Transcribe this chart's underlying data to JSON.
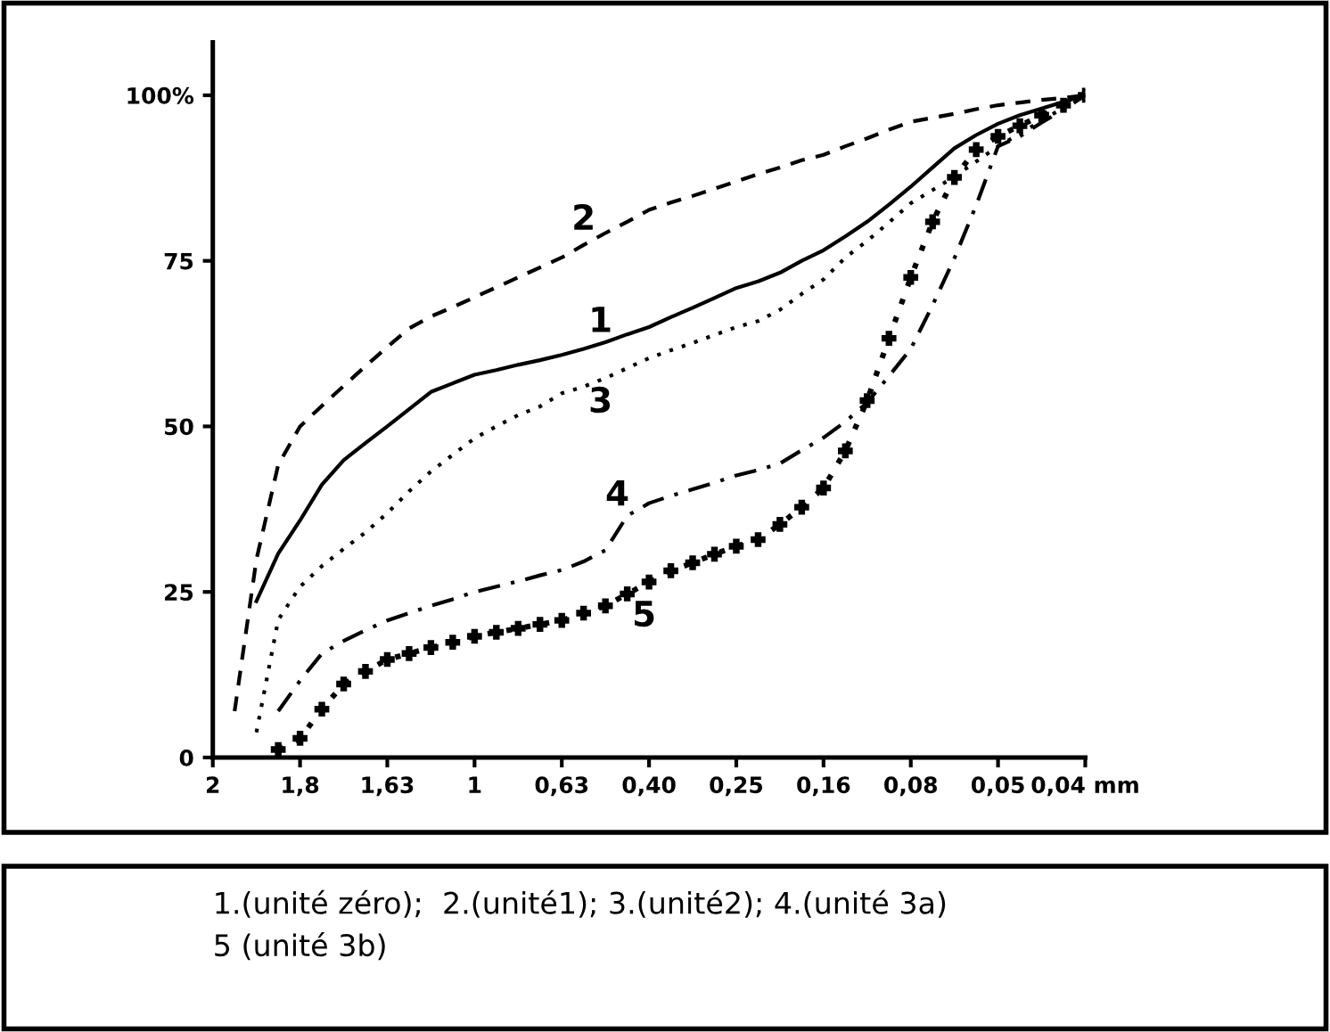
{
  "chart_data": {
    "type": "line",
    "categories": [
      "2",
      null,
      null,
      null,
      "1,8",
      null,
      null,
      null,
      "1,63",
      null,
      null,
      null,
      "1",
      null,
      null,
      null,
      "0,63",
      null,
      null,
      null,
      "0,40",
      null,
      null,
      null,
      "0,25",
      null,
      null,
      null,
      "0,16",
      null,
      null,
      null,
      "0,08",
      null,
      null,
      null,
      "0,05",
      null,
      null,
      null,
      "0,04 mm"
    ],
    "ylim": [
      0,
      108
    ],
    "yticks": [
      0,
      25,
      50,
      75,
      {
        "value": 100,
        "label": "100%"
      }
    ],
    "series": [
      {
        "name": "1",
        "color": "#000000",
        "line_style": "solid",
        "values": [
          null,
          null,
          23.6,
          30.8,
          35.8,
          41.2,
          44.9,
          47.5,
          50,
          52.6,
          55.2,
          56.5,
          57.8,
          58.5,
          59.3,
          60,
          60.8,
          61.7,
          62.7,
          63.9,
          65,
          66.5,
          67.9,
          69.4,
          70.9,
          71.9,
          73.2,
          75,
          76.6,
          78.7,
          80.9,
          83.5,
          86.2,
          89.1,
          92,
          94,
          95.7,
          97,
          98,
          99,
          100
        ]
      },
      {
        "name": "2",
        "color": "#000000",
        "line_style": "dashed",
        "values": [
          null,
          7,
          29.9,
          44.2,
          50,
          53.1,
          56.1,
          59.1,
          62,
          64.8,
          66.6,
          68,
          69.5,
          71,
          72.5,
          74,
          75.5,
          77.4,
          79.2,
          80.9,
          82.7,
          83.8,
          84.8,
          85.9,
          87,
          88.1,
          89.1,
          90.2,
          91,
          92.3,
          93.5,
          94.8,
          96,
          96.6,
          97.2,
          97.9,
          98.5,
          98.9,
          99.3,
          99.6,
          100
        ]
      },
      {
        "name": "3",
        "color": "#000000",
        "line_style": "dotted",
        "values": [
          null,
          null,
          3.8,
          20.8,
          25.8,
          28.9,
          31.5,
          34,
          36.9,
          40.2,
          43.2,
          45.7,
          48.2,
          50,
          51.7,
          53,
          55,
          56,
          57.3,
          58.8,
          60.3,
          61.5,
          62.6,
          63.8,
          65,
          65.9,
          67.6,
          70,
          72.2,
          75.5,
          78,
          80.8,
          83.7,
          85.7,
          87.7,
          90,
          92.3,
          94.2,
          96.2,
          98.1,
          100
        ]
      },
      {
        "name": "4",
        "color": "#000000",
        "line_style": "dashdot",
        "values": [
          null,
          null,
          null,
          7,
          11.6,
          15.7,
          17.6,
          19.2,
          20.7,
          21.8,
          22.9,
          23.9,
          25,
          25.8,
          26.6,
          27.5,
          28.3,
          29.6,
          31.3,
          36.5,
          38.4,
          39.5,
          40.5,
          41.5,
          42.6,
          43.4,
          44.4,
          46.4,
          48.3,
          50.7,
          53.6,
          57.6,
          61.7,
          68.3,
          75.4,
          83.4,
          92.3,
          93.8,
          95.9,
          97.8,
          100
        ]
      },
      {
        "name": "5",
        "color": "#000000",
        "line_style": "dotted",
        "marker": "cross",
        "values": [
          null,
          null,
          null,
          1.2,
          2.9,
          7.3,
          11.1,
          13,
          14.8,
          15.7,
          16.6,
          17.4,
          18.3,
          18.9,
          19.5,
          20.1,
          20.7,
          21.8,
          22.9,
          24.7,
          26.5,
          28.2,
          29.4,
          30.7,
          31.9,
          32.9,
          35.2,
          37.8,
          40.7,
          46.3,
          53.9,
          63.3,
          72.5,
          80.9,
          87.6,
          91.8,
          93.8,
          95.4,
          97,
          98.5,
          100
        ]
      }
    ],
    "annotations": [
      "1.(unité zéro);  2.(unité1); 3.(unité2); 4.(unité 3a)\n5 (unité 3b)"
    ]
  }
}
